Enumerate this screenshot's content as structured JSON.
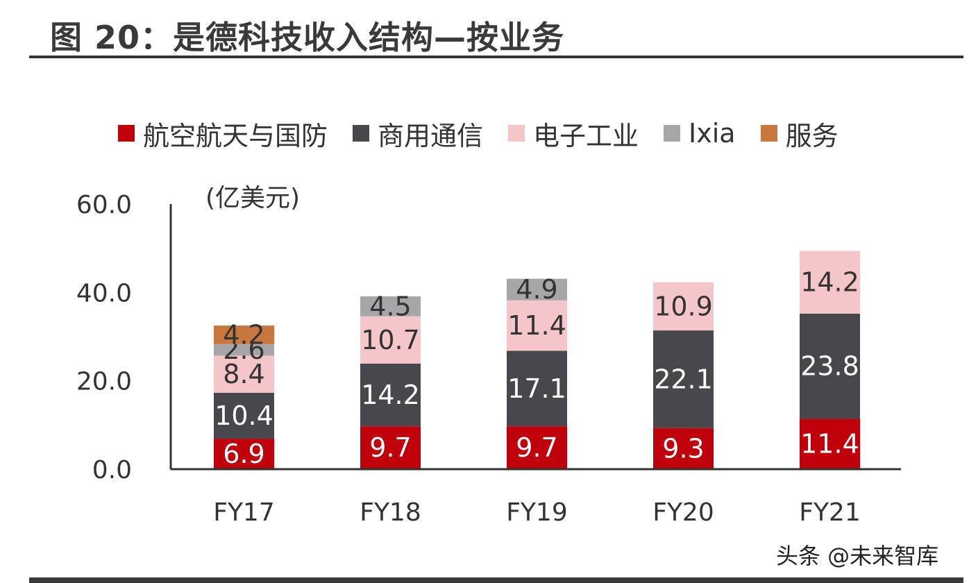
{
  "figure": {
    "title": "图 20：是德科技收入结构—按业务",
    "unit": "(亿美元)",
    "watermark": "头条 @未来智库"
  },
  "legend": [
    {
      "label": "航空航天与国防",
      "color": "#c0000b"
    },
    {
      "label": "商用通信",
      "color": "#48484c"
    },
    {
      "label": "电子工业",
      "color": "#f4c6c9"
    },
    {
      "label": "Ixia",
      "color": "#a6a6a8"
    },
    {
      "label": "服务",
      "color": "#c8773e"
    }
  ],
  "chart_data": {
    "type": "bar",
    "stacked": true,
    "title": "图 20：是德科技收入结构—按业务",
    "ylabel": "(亿美元)",
    "xlabel": "",
    "ylim": [
      0,
      60
    ],
    "yticks": [
      0,
      20,
      40,
      60
    ],
    "ytick_labels": [
      "0.0",
      "20.0",
      "40.0",
      "60.0"
    ],
    "categories": [
      "FY17",
      "FY18",
      "FY19",
      "FY20",
      "FY21"
    ],
    "series": [
      {
        "name": "航空航天与国防",
        "color": "#c0000b",
        "label_color": "#ffffff",
        "values": [
          6.9,
          9.7,
          9.7,
          9.3,
          11.4
        ],
        "labels": [
          "6.9",
          "9.7",
          "9.7",
          "9.3",
          "11.4"
        ]
      },
      {
        "name": "商用通信",
        "color": "#48484c",
        "label_color": "#ffffff",
        "values": [
          10.4,
          14.2,
          17.1,
          22.1,
          23.8
        ],
        "labels": [
          "10.4",
          "14.2",
          "17.1",
          "22.1",
          "23.8"
        ]
      },
      {
        "name": "电子工业",
        "color": "#f4c6c9",
        "label_color": "#333333",
        "values": [
          8.4,
          10.7,
          11.4,
          10.9,
          14.2
        ],
        "labels": [
          "8.4",
          "10.7",
          "11.4",
          "10.9",
          "14.2"
        ]
      },
      {
        "name": "Ixia",
        "color": "#a6a6a8",
        "label_color": "#333333",
        "values": [
          2.6,
          4.5,
          4.9,
          0,
          0
        ],
        "labels": [
          "2.6",
          "4.5",
          "4.9",
          "",
          ""
        ]
      },
      {
        "name": "服务",
        "color": "#c8773e",
        "label_color": "#333333",
        "values": [
          4.2,
          0,
          0,
          0,
          0
        ],
        "labels": [
          "4.2",
          "",
          "",
          "",
          ""
        ]
      }
    ],
    "grid": false,
    "legend_position": "top"
  }
}
